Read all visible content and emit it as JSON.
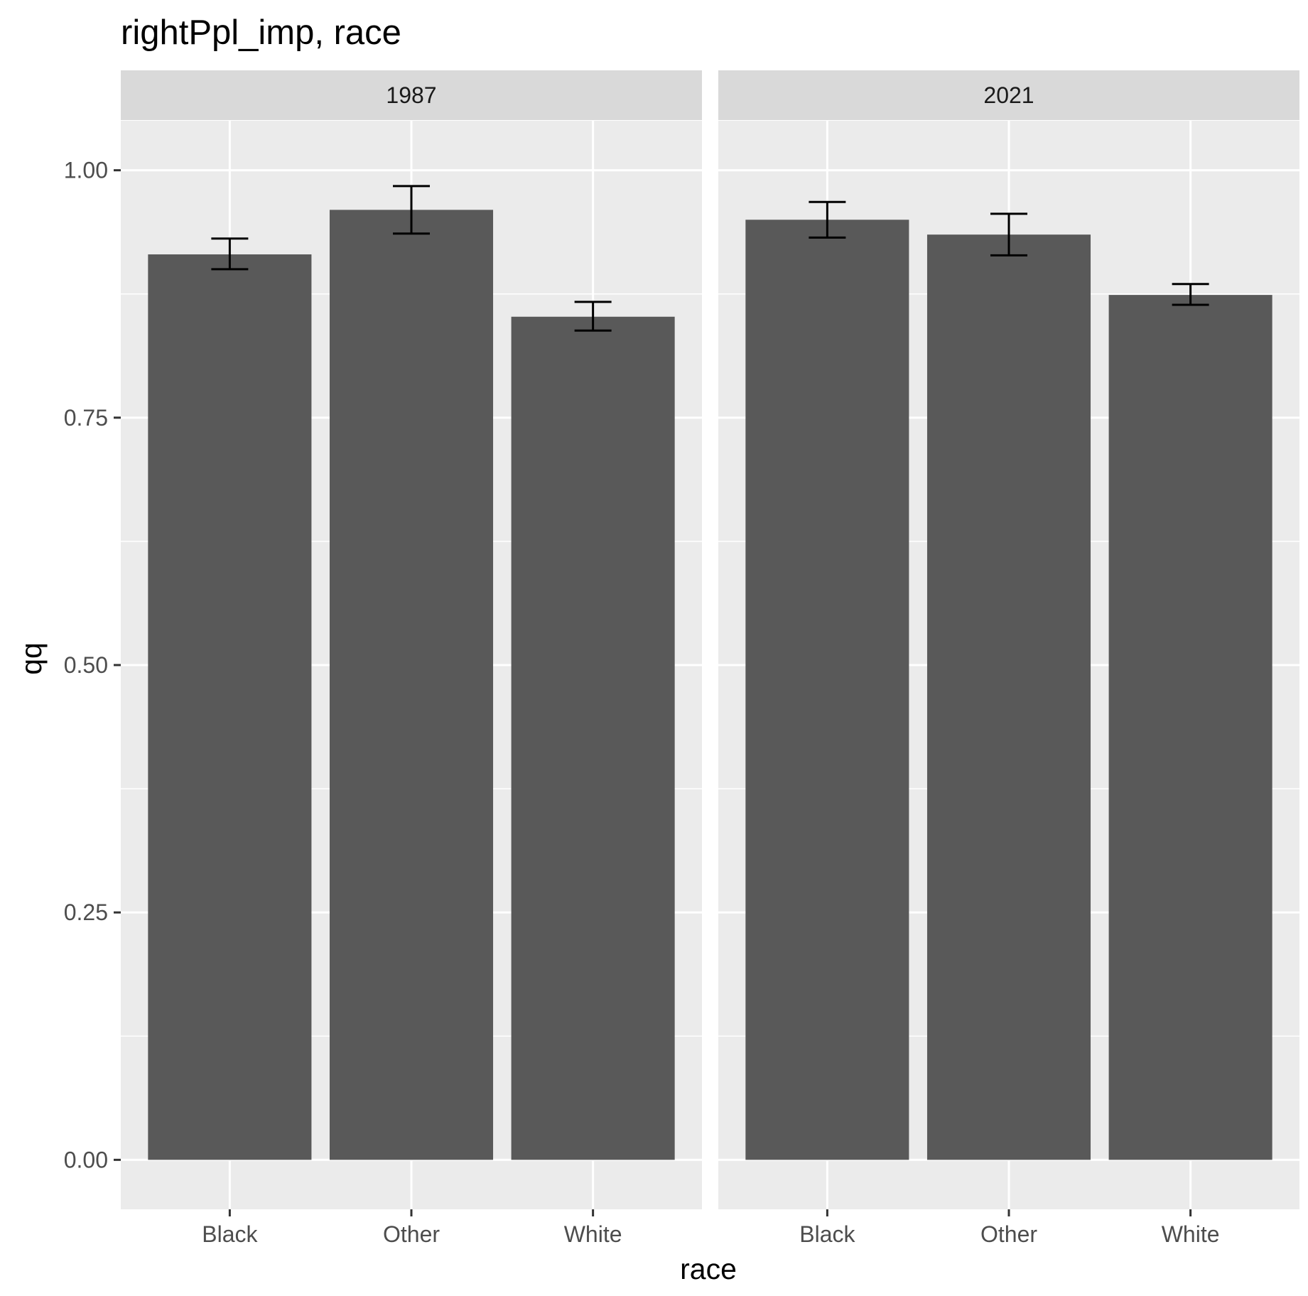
{
  "chart_data": {
    "type": "bar",
    "title": "rightPpl_imp, race",
    "xlabel": "race",
    "ylabel": "qq",
    "ylim": [
      -0.05,
      1.05
    ],
    "yticks": [
      "0.00",
      "0.25",
      "0.50",
      "0.75",
      "1.00"
    ],
    "categories": [
      "Black",
      "Other",
      "White"
    ],
    "facet_labels": [
      "1987",
      "2021"
    ],
    "grid": true,
    "colors": {
      "bar": "#595959",
      "panel": "#ebebeb",
      "strip": "#d9d9d9",
      "grid": "#ffffff",
      "errorbar": "#000000"
    },
    "panels": [
      {
        "facet": "1987",
        "values": [
          0.915,
          0.96,
          0.852
        ],
        "error_low": [
          0.9,
          0.936,
          0.838
        ],
        "error_high": [
          0.931,
          0.984,
          0.867
        ]
      },
      {
        "facet": "2021",
        "values": [
          0.95,
          0.935,
          0.874
        ],
        "error_low": [
          0.932,
          0.914,
          0.864
        ],
        "error_high": [
          0.968,
          0.956,
          0.885
        ]
      }
    ]
  }
}
